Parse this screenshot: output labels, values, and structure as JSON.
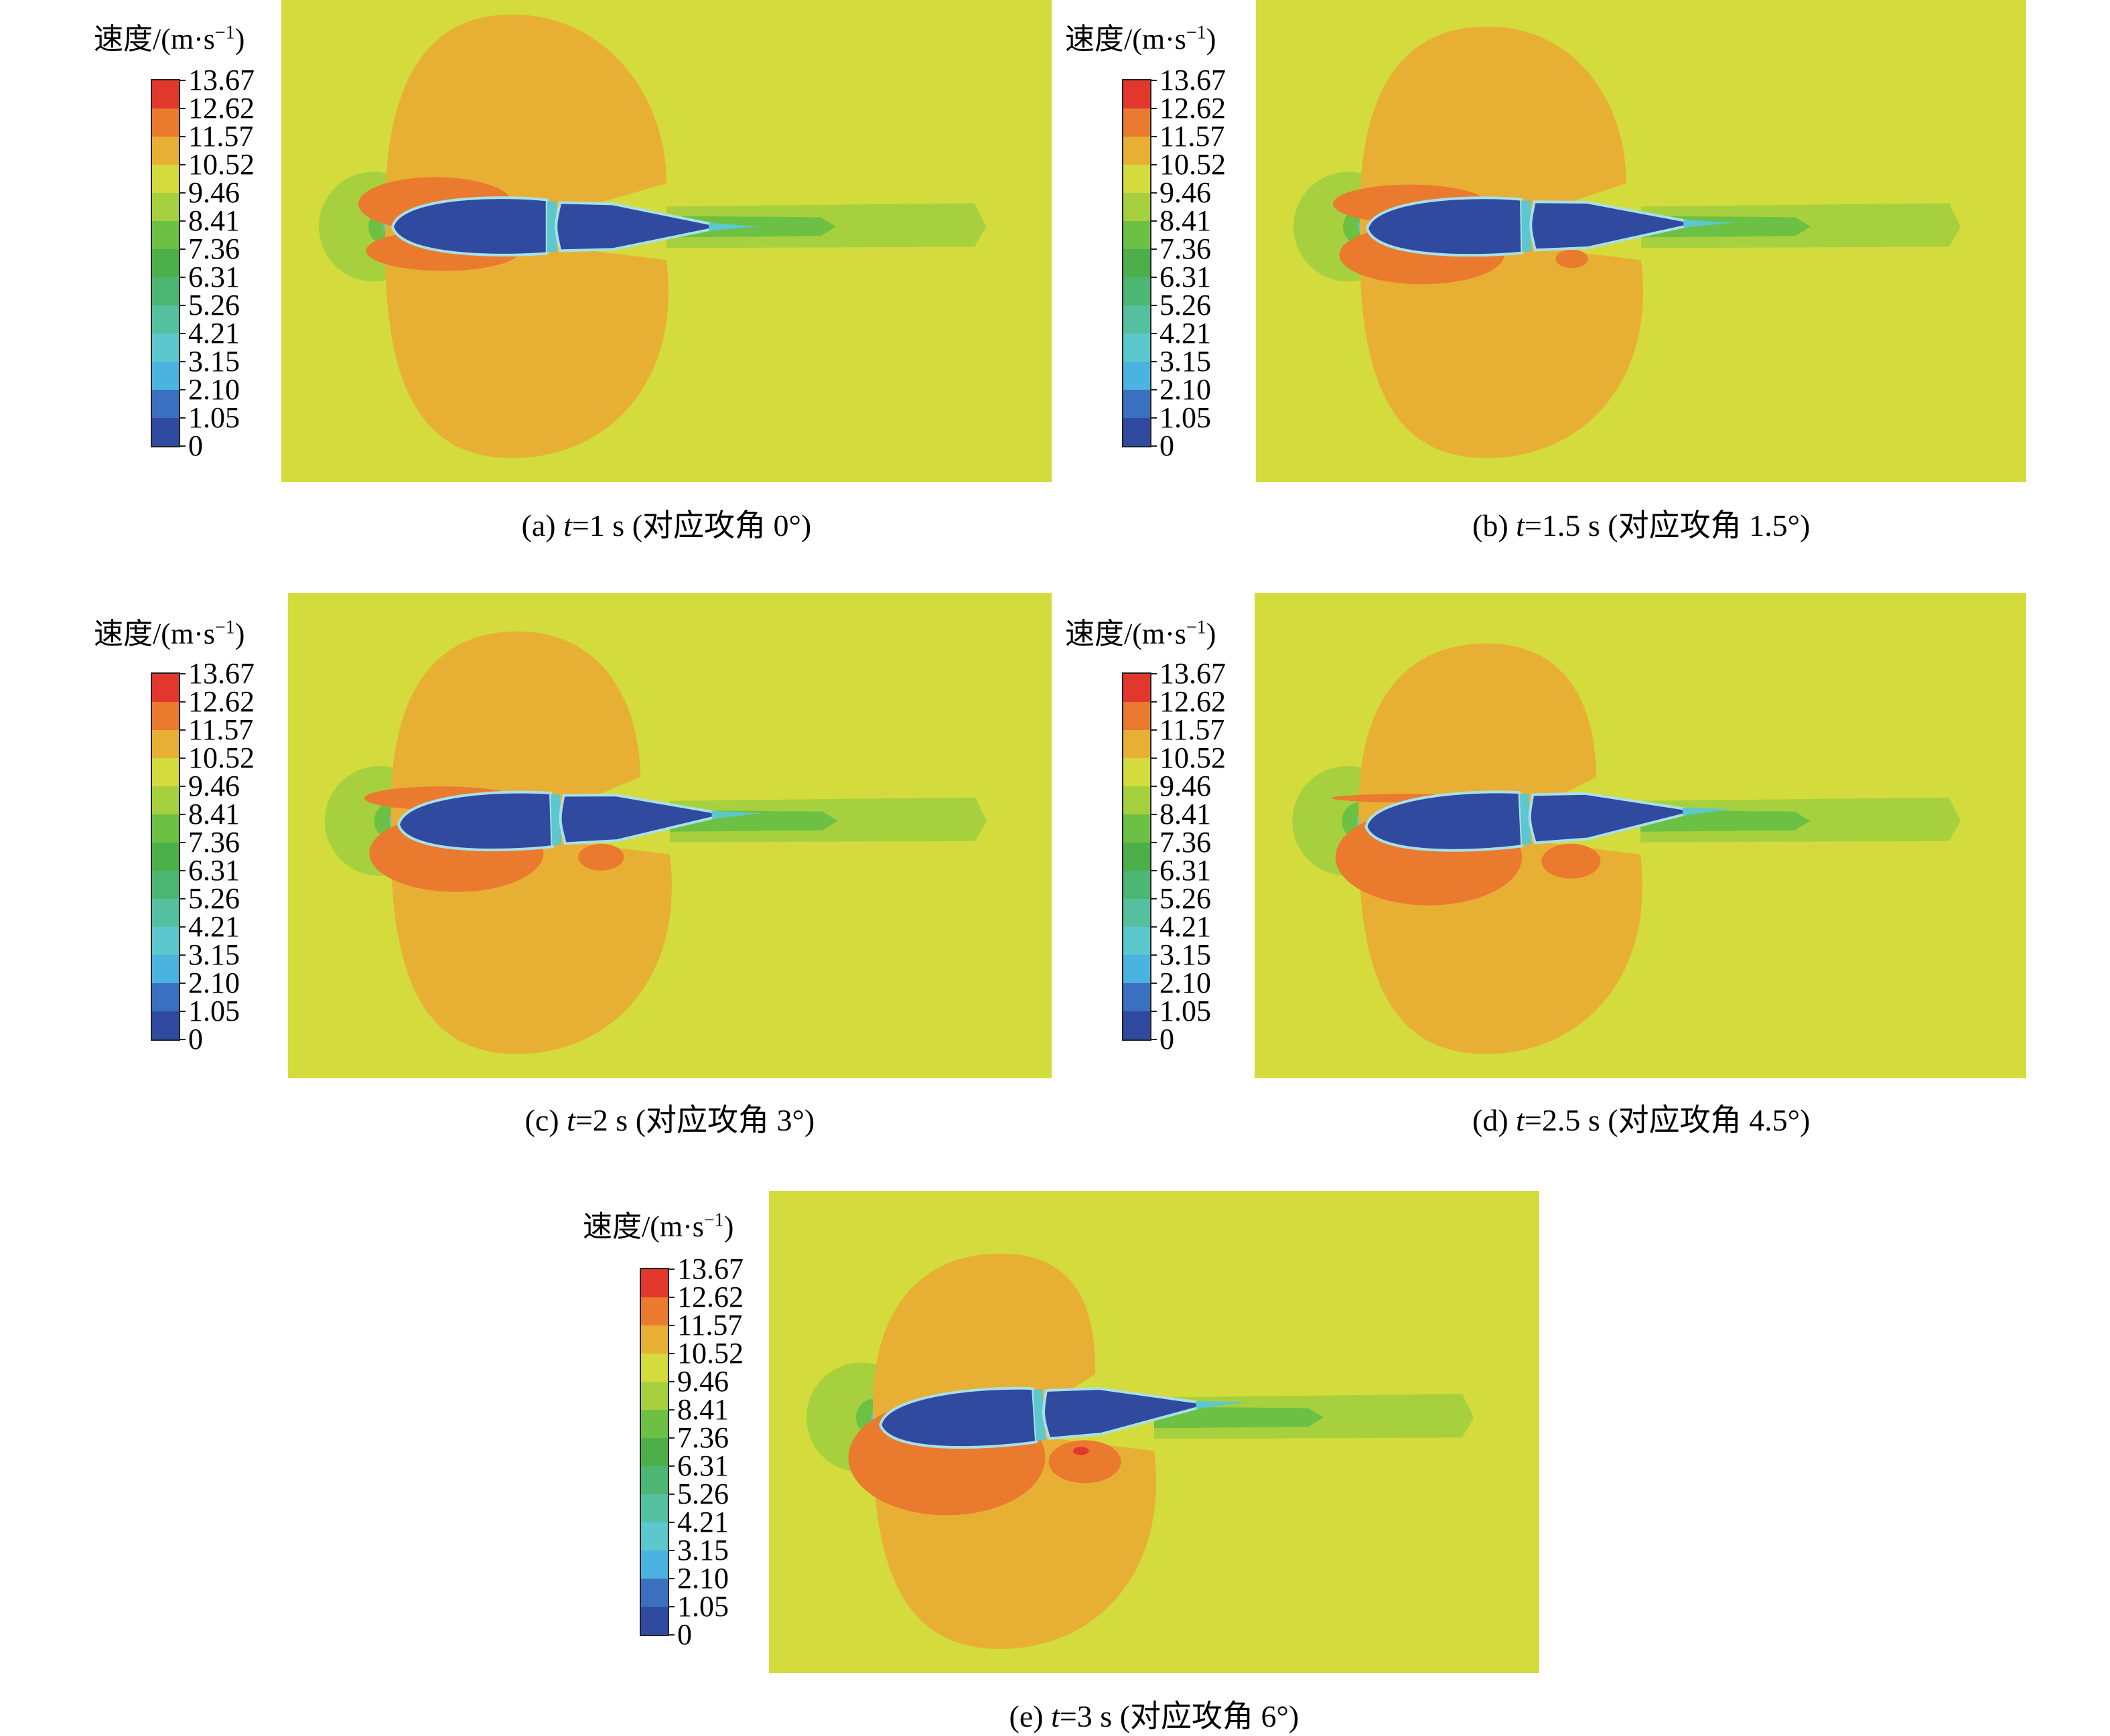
{
  "legend": {
    "title": "速度/(m·s",
    "title_sup": "−1",
    "title_close": ")",
    "ticks": [
      "13.67",
      "12.62",
      "11.57",
      "10.52",
      "9.46",
      "8.41",
      "7.36",
      "6.31",
      "5.26",
      "4.21",
      "3.15",
      "2.10",
      "1.05",
      "0"
    ],
    "colors": [
      "#e2372d",
      "#ea7a2e",
      "#e7b035",
      "#d3dc3c",
      "#a7d03e",
      "#6cc043",
      "#4caf4a",
      "#4cb673",
      "#54c0a0",
      "#5cc7cc",
      "#4ab3df",
      "#3b6fbf",
      "#2f4a9e"
    ]
  },
  "field_colors": {
    "background": "#d3dc3c",
    "lobe": "#e7b035",
    "hot": "#ea7a2e",
    "hot_peak": "#e2372d",
    "wake": "#a7d03e",
    "wake_core": "#6cc043",
    "body": "#2f4a9e",
    "edge_cyan": "#5cc7cc",
    "edge_light": "#a8e0e8"
  },
  "panels": [
    {
      "id": "a",
      "caption_prefix": "(a) ",
      "caption_t": "t",
      "caption_rest": "=1 s (对应攻角 0°)"
    },
    {
      "id": "b",
      "caption_prefix": "(b) ",
      "caption_t": "t",
      "caption_rest": "=1.5 s (对应攻角 1.5°)"
    },
    {
      "id": "c",
      "caption_prefix": "(c) ",
      "caption_t": "t",
      "caption_rest": "=2 s (对应攻角 3°)"
    },
    {
      "id": "d",
      "caption_prefix": "(d) ",
      "caption_t": "t",
      "caption_rest": "=2.5 s (对应攻角 4.5°)"
    },
    {
      "id": "e",
      "caption_prefix": "(e) ",
      "caption_t": "t",
      "caption_rest": "=3 s (对应攻角 6°)"
    }
  ]
}
